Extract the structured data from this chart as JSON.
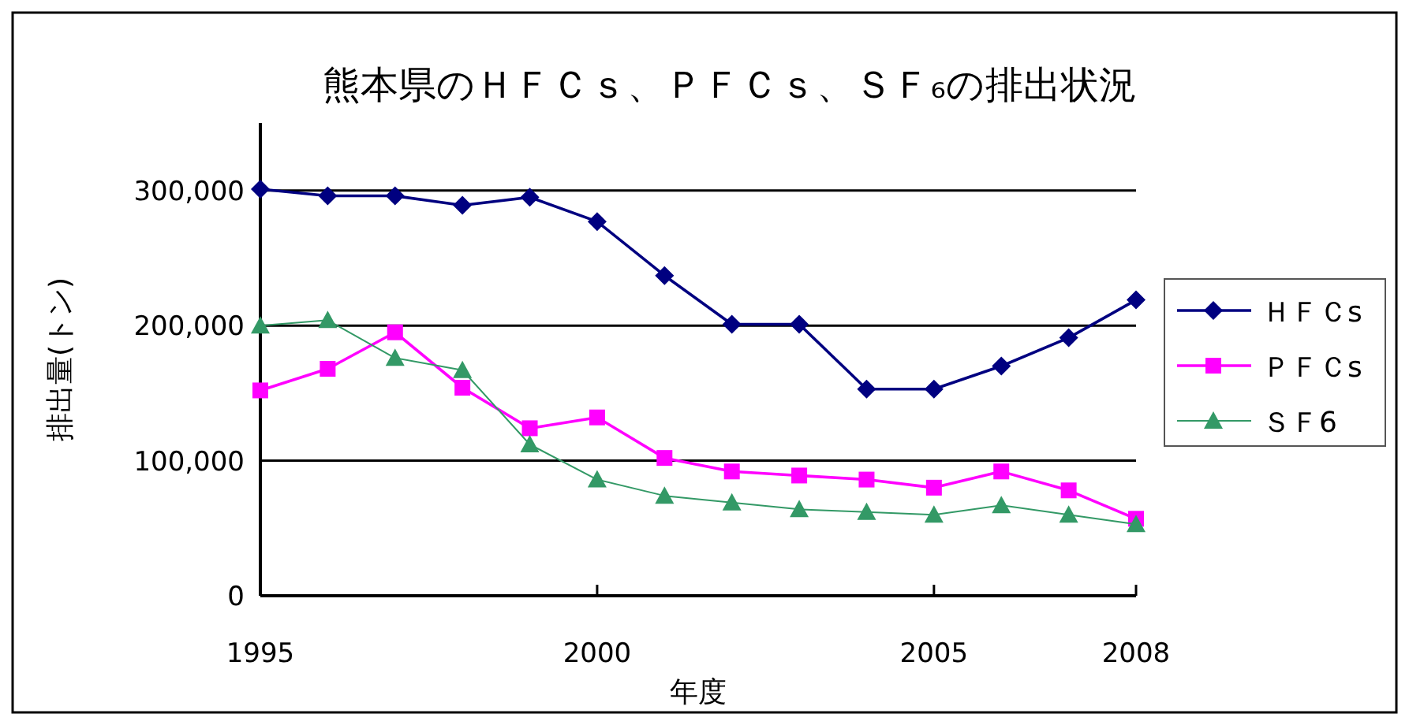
{
  "chart_data": {
    "type": "line",
    "title": "熊本県のＨＦＣｓ、ＰＦＣｓ、ＳＦ₆の排出状況",
    "xlabel": "年度",
    "ylabel": "排出量(トン)",
    "x": [
      1995,
      1996,
      1997,
      1998,
      1999,
      2000,
      2001,
      2002,
      2003,
      2004,
      2005,
      2006,
      2007,
      2008
    ],
    "series": [
      {
        "name": "ＨＦＣs",
        "color": "#000080",
        "marker": "diamond",
        "values": [
          301000,
          296000,
          296000,
          289000,
          295000,
          277000,
          237000,
          201000,
          201000,
          153000,
          153000,
          170000,
          191000,
          219000
        ]
      },
      {
        "name": "ＰＦＣs",
        "color": "#ff00ff",
        "marker": "square",
        "values": [
          152000,
          168000,
          195000,
          154000,
          124000,
          132000,
          102000,
          92000,
          89000,
          86000,
          80000,
          92000,
          78000,
          57000
        ]
      },
      {
        "name": "ＳＦ6",
        "color": "#339966",
        "marker": "triangle",
        "values": [
          200000,
          204000,
          176000,
          167000,
          112000,
          86000,
          74000,
          69000,
          64000,
          62000,
          60000,
          67000,
          60000,
          53000
        ]
      }
    ],
    "xlim": [
      1995,
      2008
    ],
    "xticks": [
      1995,
      2000,
      2005,
      2008
    ],
    "ylim": [
      0,
      350000
    ],
    "yticks": [
      {
        "value": 0,
        "label": "0"
      },
      {
        "value": 100000,
        "label": "100,000"
      },
      {
        "value": 200000,
        "label": "200,000"
      },
      {
        "value": 300000,
        "label": "300,000"
      }
    ],
    "grid": "y",
    "legend": "right",
    "line_style": "solid"
  }
}
